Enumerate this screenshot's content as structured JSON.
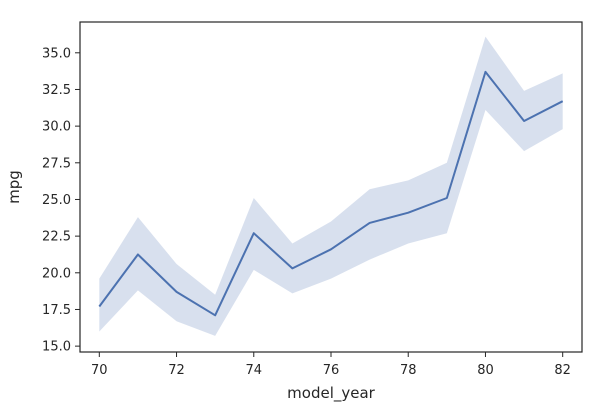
{
  "chart_data": {
    "type": "line",
    "xlabel": "model_year",
    "ylabel": "mpg",
    "xlim": [
      69.5,
      82.5
    ],
    "ylim": [
      14.6,
      37.1
    ],
    "x_ticks": [
      70,
      72,
      74,
      76,
      78,
      80,
      82
    ],
    "y_ticks": [
      15.0,
      17.5,
      20.0,
      22.5,
      25.0,
      27.5,
      30.0,
      32.5,
      35.0
    ],
    "y_tick_labels": [
      "15.0",
      "17.5",
      "20.0",
      "22.5",
      "25.0",
      "27.5",
      "30.0",
      "32.5",
      "35.0"
    ],
    "grid": false,
    "series": [
      {
        "x": [
          70,
          71,
          72,
          73,
          74,
          75,
          76,
          77,
          78,
          79,
          80,
          81,
          82
        ],
        "values": [
          17.7,
          21.25,
          18.7,
          17.1,
          22.7,
          20.3,
          21.6,
          23.4,
          24.1,
          25.1,
          33.7,
          30.35,
          31.7
        ],
        "ci_lower": [
          16.0,
          18.8,
          16.7,
          15.7,
          20.2,
          18.6,
          19.6,
          20.9,
          22.0,
          22.7,
          31.1,
          28.3,
          29.8
        ],
        "ci_upper": [
          19.6,
          23.8,
          20.6,
          18.5,
          25.1,
          22.0,
          23.5,
          25.7,
          26.3,
          27.5,
          36.1,
          32.4,
          33.6
        ],
        "color": "#4c72b0",
        "band_color": "#4c72b0"
      }
    ]
  }
}
